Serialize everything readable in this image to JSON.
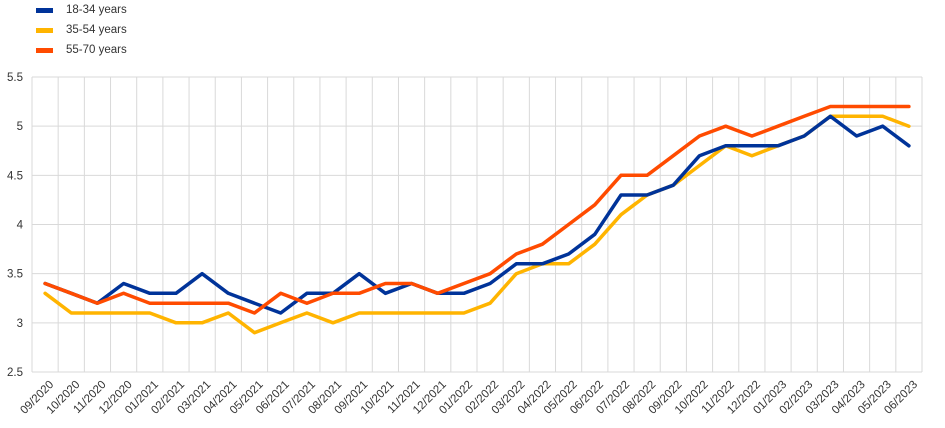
{
  "chart_data": {
    "type": "line",
    "categories": [
      "09/2020",
      "10/2020",
      "11/2020",
      "12/2020",
      "01/2021",
      "02/2021",
      "03/2021",
      "04/2021",
      "05/2021",
      "06/2021",
      "07/2021",
      "08/2021",
      "09/2021",
      "10/2021",
      "11/2021",
      "12/2021",
      "01/2022",
      "02/2022",
      "03/2022",
      "04/2022",
      "05/2022",
      "06/2022",
      "07/2022",
      "08/2022",
      "09/2022",
      "10/2022",
      "11/2022",
      "12/2022",
      "01/2023",
      "02/2023",
      "03/2023",
      "04/2023",
      "05/2023",
      "06/2023"
    ],
    "series": [
      {
        "name": "18-34 years",
        "color": "#003399",
        "values": [
          3.4,
          3.3,
          3.2,
          3.4,
          3.3,
          3.3,
          3.5,
          3.3,
          3.2,
          3.1,
          3.3,
          3.3,
          3.5,
          3.3,
          3.4,
          3.3,
          3.3,
          3.4,
          3.6,
          3.6,
          3.7,
          3.9,
          4.3,
          4.3,
          4.4,
          4.7,
          4.8,
          4.8,
          4.8,
          4.9,
          5.1,
          4.9,
          5.0,
          4.8
        ]
      },
      {
        "name": "35-54 years",
        "color": "#FFB400",
        "values": [
          3.3,
          3.1,
          3.1,
          3.1,
          3.1,
          3.0,
          3.0,
          3.1,
          2.9,
          3.0,
          3.1,
          3.0,
          3.1,
          3.1,
          3.1,
          3.1,
          3.1,
          3.2,
          3.5,
          3.6,
          3.6,
          3.8,
          4.1,
          4.3,
          4.4,
          4.6,
          4.8,
          4.7,
          4.8,
          4.9,
          5.1,
          5.1,
          5.1,
          5.0
        ]
      },
      {
        "name": "55-70 years",
        "color": "#FF4B00",
        "values": [
          3.4,
          3.3,
          3.2,
          3.3,
          3.2,
          3.2,
          3.2,
          3.2,
          3.1,
          3.3,
          3.2,
          3.3,
          3.3,
          3.4,
          3.4,
          3.3,
          3.4,
          3.5,
          3.7,
          3.8,
          4.0,
          4.2,
          4.5,
          4.5,
          4.7,
          4.9,
          5.0,
          4.9,
          5.0,
          5.1,
          5.2,
          5.2,
          5.2,
          5.2
        ]
      }
    ],
    "ylim": [
      2.5,
      5.5
    ],
    "yticks": [
      "2.5",
      "3",
      "3.5",
      "4",
      "4.5",
      "5",
      "5.5"
    ],
    "grid": true,
    "legend": "top-left"
  }
}
